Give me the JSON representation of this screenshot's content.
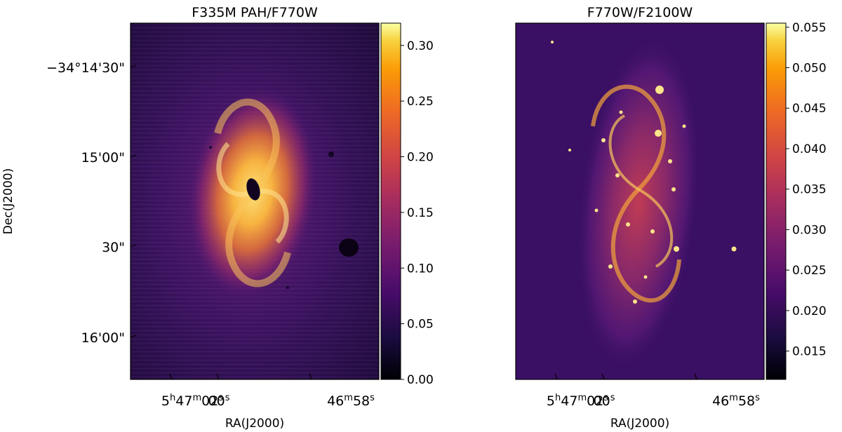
{
  "chart_data": [
    {
      "type": "heatmap",
      "title": "F335M PAH/F770W",
      "xlabel": "RA(J2000)",
      "ylabel": "Dec(J2000)",
      "x_ticks": [
        {
          "label": "5h47m02s",
          "parts": [
            [
              "5",
              ""
            ],
            [
              "h",
              "sup"
            ],
            [
              "47",
              ""
            ],
            [
              "m",
              "sup"
            ],
            [
              "02",
              ""
            ],
            [
              "s",
              "sup"
            ]
          ]
        },
        {
          "label": "00s",
          "parts": [
            [
              "00",
              ""
            ],
            [
              "s",
              "sup"
            ]
          ]
        },
        {
          "label": "46m58s",
          "parts": [
            [
              "46",
              ""
            ],
            [
              "m",
              "sup"
            ],
            [
              "58",
              ""
            ],
            [
              "s",
              "sup"
            ]
          ]
        }
      ],
      "y_ticks": [
        "−34°14'30\"",
        "15'00\"",
        "30\"",
        "16'00\""
      ],
      "colorbar": {
        "range": [
          0.0,
          0.32
        ],
        "ticks": [
          "0.00",
          "0.05",
          "0.10",
          "0.15",
          "0.20",
          "0.25",
          "0.30"
        ],
        "tick_values": [
          0.0,
          0.05,
          0.1,
          0.15,
          0.2,
          0.25,
          0.3
        ],
        "colormap": "inferno"
      },
      "grid": false
    },
    {
      "type": "heatmap",
      "title": "F770W/F2100W",
      "xlabel": "RA(J2000)",
      "ylabel": "",
      "x_ticks": [
        {
          "label": "5h47m02s",
          "parts": [
            [
              "5",
              ""
            ],
            [
              "h",
              "sup"
            ],
            [
              "47",
              ""
            ],
            [
              "m",
              "sup"
            ],
            [
              "02",
              ""
            ],
            [
              "s",
              "sup"
            ]
          ]
        },
        {
          "label": "00s",
          "parts": [
            [
              "00",
              ""
            ],
            [
              "s",
              "sup"
            ]
          ]
        },
        {
          "label": "46m58s",
          "parts": [
            [
              "46",
              ""
            ],
            [
              "m",
              "sup"
            ],
            [
              "58",
              ""
            ],
            [
              "s",
              "sup"
            ]
          ]
        }
      ],
      "y_ticks": [],
      "colorbar": {
        "range": [
          0.0115,
          0.0555
        ],
        "ticks": [
          "0.015",
          "0.020",
          "0.025",
          "0.030",
          "0.035",
          "0.040",
          "0.045",
          "0.050",
          "0.055"
        ],
        "tick_values": [
          0.015,
          0.02,
          0.025,
          0.03,
          0.035,
          0.04,
          0.045,
          0.05,
          0.055
        ],
        "colormap": "inferno"
      },
      "grid": false
    }
  ]
}
